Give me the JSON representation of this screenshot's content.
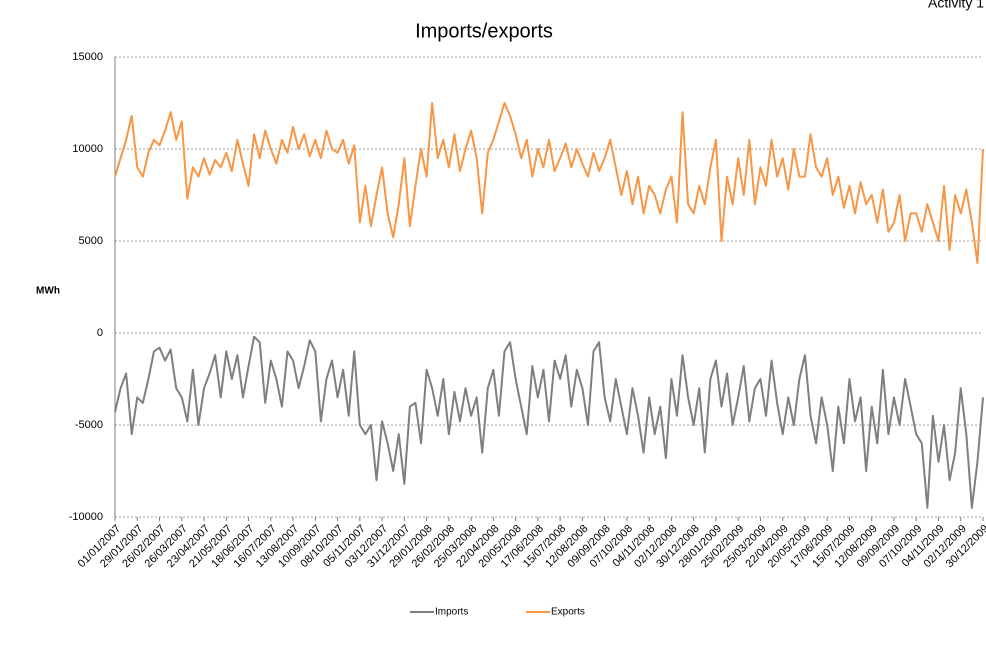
{
  "chart_data": {
    "type": "line",
    "title": "Imports/exports",
    "annotation": "Activity 1",
    "y_label": "MWh",
    "categories": [
      "01/01/2007",
      null,
      null,
      null,
      "29/01/2007",
      null,
      null,
      null,
      "26/02/2007",
      null,
      null,
      null,
      "26/03/2007",
      null,
      null,
      null,
      "23/04/2007",
      null,
      null,
      null,
      "21/05/2007",
      null,
      null,
      null,
      "18/06/2007",
      null,
      null,
      null,
      "16/07/2007",
      null,
      null,
      null,
      "13/08/2007",
      null,
      null,
      null,
      "10/09/2007",
      null,
      null,
      null,
      "08/10/2007",
      null,
      null,
      null,
      "05/11/2007",
      null,
      null,
      null,
      "03/12/2007",
      null,
      null,
      null,
      "31/12/2007",
      null,
      null,
      null,
      "29/01/2008",
      null,
      null,
      null,
      "26/02/2008",
      null,
      null,
      null,
      "25/03/2008",
      null,
      null,
      null,
      "22/04/2008",
      null,
      null,
      null,
      "20/05/2008",
      null,
      null,
      null,
      "17/06/2008",
      null,
      null,
      null,
      "15/07/2008",
      null,
      null,
      null,
      "12/08/2008",
      null,
      null,
      null,
      "09/09/2008",
      null,
      null,
      null,
      "07/10/2008",
      null,
      null,
      null,
      "04/11/2008",
      null,
      null,
      null,
      "02/12/2008",
      null,
      null,
      null,
      "30/12/2008",
      null,
      null,
      null,
      "28/01/2009",
      null,
      null,
      null,
      "25/02/2009",
      null,
      null,
      null,
      "25/03/2009",
      null,
      null,
      null,
      "22/04/2009",
      null,
      null,
      null,
      "20/05/2009",
      null,
      null,
      null,
      "17/06/2009",
      null,
      null,
      null,
      "15/07/2009",
      null,
      null,
      null,
      "12/08/2009",
      null,
      null,
      null,
      "09/09/2009",
      null,
      null,
      null,
      "07/10/2009",
      null,
      null,
      null,
      "04/11/2009",
      null,
      null,
      null,
      "02/12/2009",
      null,
      null,
      null,
      "30/12/2009"
    ],
    "series": [
      {
        "name": "Imports",
        "color": "#7f7f7f",
        "values": [
          -4300,
          -3000,
          -2200,
          -5500,
          -3500,
          -3800,
          -2500,
          -1000,
          -800,
          -1500,
          -900,
          -3000,
          -3500,
          -4800,
          -2000,
          -5000,
          -3000,
          -2200,
          -1200,
          -3500,
          -1000,
          -2500,
          -1200,
          -3500,
          -1800,
          -200,
          -500,
          -3800,
          -1500,
          -2500,
          -4000,
          -1000,
          -1500,
          -3000,
          -1800,
          -400,
          -1000,
          -4800,
          -2500,
          -1500,
          -3500,
          -2000,
          -4500,
          -1000,
          -5000,
          -5500,
          -5000,
          -8000,
          -4800,
          -6000,
          -7500,
          -5500,
          -8200,
          -4000,
          -3800,
          -6000,
          -2000,
          -3000,
          -4500,
          -2500,
          -5500,
          -3200,
          -4800,
          -3000,
          -4500,
          -3500,
          -6500,
          -3000,
          -2000,
          -4500,
          -1000,
          -500,
          -2500,
          -4000,
          -5500,
          -1800,
          -3500,
          -2000,
          -4800,
          -1500,
          -2500,
          -1200,
          -4000,
          -2000,
          -3000,
          -5000,
          -1000,
          -500,
          -3500,
          -4800,
          -2500,
          -4000,
          -5500,
          -3000,
          -4500,
          -6500,
          -3500,
          -5500,
          -4000,
          -6800,
          -2500,
          -4500,
          -1200,
          -3500,
          -5000,
          -3000,
          -6500,
          -2500,
          -1500,
          -4000,
          -2200,
          -5000,
          -3500,
          -1800,
          -4800,
          -3000,
          -2500,
          -4500,
          -1500,
          -3800,
          -5500,
          -3500,
          -5000,
          -2500,
          -1200,
          -4500,
          -6000,
          -3500,
          -5000,
          -7500,
          -4000,
          -6000,
          -2500,
          -4800,
          -3500,
          -7500,
          -4000,
          -6000,
          -2000,
          -5500,
          -3500,
          -5000,
          -2500,
          -4000,
          -5500,
          -6000,
          -9500,
          -4500,
          -7000,
          -5000,
          -8000,
          -6500,
          -3000,
          -5500,
          -9500,
          -7000,
          -3500
        ]
      },
      {
        "name": "Exports",
        "color": "#f79646",
        "values": [
          8500,
          9500,
          10500,
          11800,
          9000,
          8500,
          9800,
          10500,
          10200,
          11000,
          12000,
          10500,
          11500,
          7300,
          9000,
          8500,
          9500,
          8600,
          9400,
          9000,
          9800,
          8800,
          10500,
          9200,
          8000,
          10800,
          9500,
          11000,
          10000,
          9200,
          10500,
          9800,
          11200,
          10000,
          10800,
          9600,
          10500,
          9500,
          11000,
          10000,
          9800,
          10500,
          9200,
          10200,
          6000,
          8000,
          5800,
          7500,
          9000,
          6500,
          5200,
          7000,
          9500,
          5800,
          8000,
          10000,
          8500,
          12500,
          9500,
          10500,
          9000,
          10800,
          8800,
          10000,
          11000,
          9500,
          6500,
          9800,
          10500,
          11500,
          12500,
          11800,
          10800,
          9500,
          10500,
          8500,
          10000,
          9000,
          10500,
          8800,
          9500,
          10300,
          9000,
          10000,
          9200,
          8500,
          9800,
          8800,
          9500,
          10500,
          9000,
          7500,
          8800,
          7000,
          8500,
          6500,
          8000,
          7500,
          6500,
          7800,
          8500,
          6000,
          12000,
          7000,
          6500,
          8000,
          7000,
          9000,
          10500,
          5000,
          8500,
          7000,
          9500,
          7500,
          10500,
          7000,
          9000,
          8000,
          10500,
          8500,
          9500,
          7800,
          10000,
          8500,
          8500,
          10800,
          9000,
          8500,
          9500,
          7500,
          8500,
          6800,
          8000,
          6500,
          8200,
          7000,
          7500,
          6000,
          7800,
          5500,
          6000,
          7500,
          5000,
          6500,
          6500,
          5500,
          7000,
          6000,
          5000,
          8000,
          4500,
          7500,
          6500,
          7800,
          6000,
          3800,
          10000
        ]
      }
    ],
    "ylim": [
      -10000,
      15000
    ],
    "yticks": [
      -10000,
      -5000,
      0,
      5000,
      10000,
      15000
    ],
    "grid": true,
    "legend": "bottom"
  }
}
